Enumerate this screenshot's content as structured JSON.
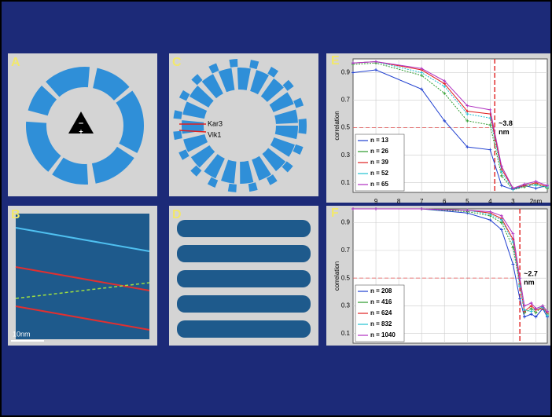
{
  "panels": [
    {
      "label": "A",
      "marks": [
        "–",
        "+"
      ]
    },
    {
      "label": "B",
      "scale": "10nm"
    },
    {
      "label": "C",
      "marks": [
        "Kar3",
        "Vik1"
      ]
    },
    {
      "label": "D"
    }
  ],
  "chart_data": [
    {
      "type": "line",
      "label": "E",
      "ylabel": "correlation",
      "x": [
        10,
        9,
        7,
        6,
        5,
        4,
        3.5,
        3,
        2.5,
        2,
        1.5
      ],
      "xlim": [
        10,
        1.5
      ],
      "ylim": [
        0.03,
        1.0
      ],
      "xticks": [
        9,
        8,
        7,
        6,
        5,
        4,
        3,
        {
          "value": 2,
          "label": "2nm"
        }
      ],
      "yticks": [
        0.1,
        0.3,
        0.5,
        0.7,
        0.9
      ],
      "xtick_labels": true,
      "grid": true,
      "threshold": 0.5,
      "resolution": 3.8,
      "annotation": [
        "~3.8",
        "nm"
      ],
      "series": [
        {
          "name": "n = 13",
          "color": "#1f3fd0",
          "values": [
            0.9,
            0.92,
            0.78,
            0.55,
            0.36,
            0.34,
            0.08,
            0.05,
            0.08,
            0.06,
            0.08
          ]
        },
        {
          "name": "n = 26",
          "color": "#2a9a2a",
          "values": [
            0.96,
            0.97,
            0.88,
            0.75,
            0.55,
            0.52,
            0.15,
            0.05,
            0.07,
            0.09,
            0.06
          ]
        },
        {
          "name": "n = 39",
          "color": "#e02020",
          "values": [
            0.97,
            0.98,
            0.92,
            0.82,
            0.62,
            0.6,
            0.2,
            0.06,
            0.08,
            0.1,
            0.07
          ]
        },
        {
          "name": "n = 52",
          "color": "#20c0d0",
          "values": [
            0.97,
            0.98,
            0.9,
            0.8,
            0.6,
            0.57,
            0.18,
            0.05,
            0.09,
            0.08,
            0.07
          ]
        },
        {
          "name": "n = 65",
          "color": "#b030c0",
          "values": [
            0.97,
            0.98,
            0.93,
            0.84,
            0.66,
            0.63,
            0.22,
            0.06,
            0.09,
            0.11,
            0.08
          ]
        }
      ]
    },
    {
      "type": "line",
      "label": "F",
      "ylabel": "correlation",
      "x": [
        10,
        9,
        7,
        5,
        4,
        3.5,
        3,
        2.7,
        2.5,
        2.2,
        2,
        1.7,
        1.5
      ],
      "xlim": [
        10,
        1.5
      ],
      "ylim": [
        0.03,
        1.0
      ],
      "xticks": [
        9,
        8,
        7,
        6,
        5,
        4,
        3,
        2
      ],
      "yticks": [
        0.1,
        0.3,
        0.5,
        0.7,
        0.9
      ],
      "xtick_labels": false,
      "grid": true,
      "threshold": 0.5,
      "resolution": 2.7,
      "annotation": [
        "~2.7",
        "nm"
      ],
      "series": [
        {
          "name": "n = 208",
          "color": "#1f3fd0",
          "values": [
            1,
            1,
            1,
            0.97,
            0.92,
            0.85,
            0.6,
            0.35,
            0.22,
            0.24,
            0.22,
            0.28,
            0.22
          ]
        },
        {
          "name": "n = 416",
          "color": "#2a9a2a",
          "values": [
            1,
            1,
            1,
            0.98,
            0.95,
            0.9,
            0.72,
            0.45,
            0.25,
            0.28,
            0.25,
            0.3,
            0.24
          ]
        },
        {
          "name": "n = 624",
          "color": "#e02020",
          "values": [
            1,
            1,
            1,
            0.99,
            0.97,
            0.93,
            0.78,
            0.46,
            0.26,
            0.3,
            0.27,
            0.28,
            0.25
          ]
        },
        {
          "name": "n = 832",
          "color": "#20c0d0",
          "values": [
            1,
            1,
            1,
            0.99,
            0.96,
            0.92,
            0.76,
            0.44,
            0.27,
            0.26,
            0.28,
            0.29,
            0.23
          ]
        },
        {
          "name": "n = 1040",
          "color": "#b030c0",
          "values": [
            1,
            1,
            1,
            0.99,
            0.98,
            0.95,
            0.82,
            0.5,
            0.3,
            0.32,
            0.28,
            0.3,
            0.26
          ]
        }
      ]
    }
  ]
}
